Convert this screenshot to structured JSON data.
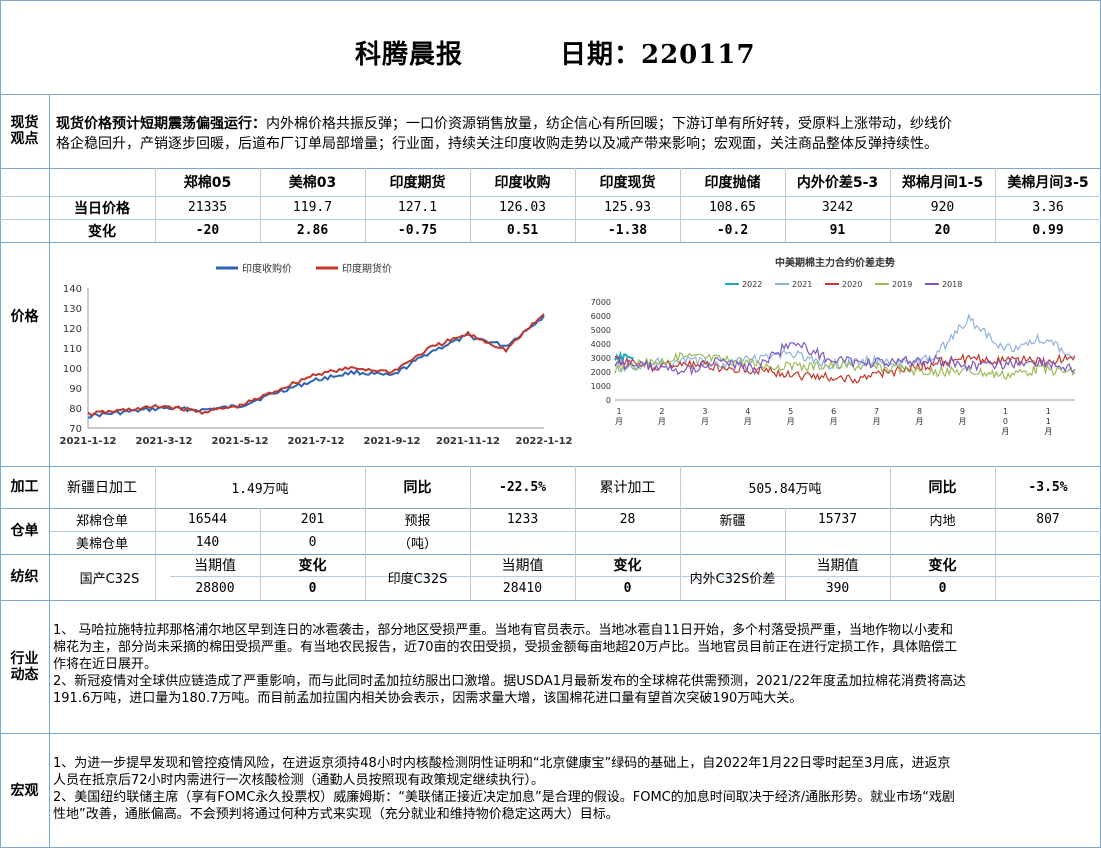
{
  "header": {
    "title": "科腾晨报",
    "date_label": "日期：220117"
  },
  "spot": {
    "label": "现货观点",
    "headline": "现货价格预计短期震荡偏强运行：",
    "text_line1": "内外棉价格共振反弹；一口价资源销售放量，纺企信心有所回暖；下游订单有所好转，受原料上涨带动，纱线价",
    "text_line2": "格企稳回升，产销逐步回暖，后道布厂订单局部增量；行业面，持续关注印度收购走势以及减产带来影响；宏观面，关注商品整体反弹持续性。"
  },
  "price": {
    "label": "价格",
    "headers": [
      "郑棉05",
      "美棉03",
      "印度期货",
      "印度收购",
      "印度现货",
      "印度抛储",
      "内外价差5-3",
      "郑棉月间1-5",
      "美棉月间3-5"
    ],
    "row_today_label": "当日价格",
    "today": [
      "21335",
      "119.7",
      "127.1",
      "126.03",
      "125.93",
      "108.65",
      "3242",
      "920",
      "3.36"
    ],
    "row_change_label": "变化",
    "change": [
      "-20",
      "2.86",
      "-0.75",
      "0.51",
      "-1.38",
      "-0.2",
      "91",
      "20",
      "0.99"
    ]
  },
  "chart_data": [
    {
      "type": "line",
      "title": "",
      "legend": [
        "印度收购价",
        "印度期货价"
      ],
      "legend_position": "top",
      "x_ticks": [
        "2021-1-12",
        "2021-3-12",
        "2021-5-12",
        "2021-7-12",
        "2021-9-12",
        "2021-11-12",
        "2022-1-12"
      ],
      "ylim": [
        70,
        140
      ],
      "y_ticks": [
        70,
        80,
        90,
        100,
        110,
        120,
        130,
        140
      ],
      "series": [
        {
          "name": "印度收购价",
          "color": "#2e63b8",
          "x": [
            "2021-1-12",
            "2021-2-12",
            "2021-3-12",
            "2021-4-12",
            "2021-5-12",
            "2021-6-12",
            "2021-7-12",
            "2021-8-12",
            "2021-9-12",
            "2021-10-12",
            "2021-11-12",
            "2021-12-12",
            "2022-1-12"
          ],
          "values": [
            76,
            78,
            80,
            79,
            81,
            88,
            94,
            98,
            96,
            108,
            116,
            111,
            126
          ]
        },
        {
          "name": "印度期货价",
          "color": "#c0392b",
          "x": [
            "2021-1-12",
            "2021-2-12",
            "2021-3-12",
            "2021-4-12",
            "2021-5-12",
            "2021-6-12",
            "2021-7-12",
            "2021-8-12",
            "2021-9-12",
            "2021-10-12",
            "2021-11-12",
            "2021-12-12",
            "2022-1-12"
          ],
          "values": [
            77,
            79,
            81,
            78,
            81,
            89,
            97,
            100,
            98,
            110,
            117,
            109,
            127
          ]
        }
      ]
    },
    {
      "type": "line",
      "title": "中美期棉主力合约价差走势",
      "legend_position": "top",
      "ylim": [
        0,
        7000
      ],
      "y_ticks": [
        0,
        1000,
        2000,
        3000,
        4000,
        5000,
        6000,
        7000
      ],
      "x_ticks": [
        "1\n月",
        "2\n月",
        "3\n月",
        "4\n月",
        "5\n月",
        "6\n月",
        "7\n月",
        "8\n月",
        "9\n月",
        "1\n0\n月",
        "1\n1\n月",
        "1\n2\n月"
      ],
      "series": [
        {
          "name": "2022",
          "color": "#1fa7c9",
          "values": [
            2700,
            3200,
            3000
          ]
        },
        {
          "name": "2021",
          "color": "#8fb3e0",
          "values": [
            2300,
            2600,
            2800,
            2500,
            2900,
            3300,
            2500,
            2800,
            2600,
            3000,
            5800,
            3600,
            4400,
            3200
          ]
        },
        {
          "name": "2020",
          "color": "#c0392b",
          "values": [
            2800,
            2400,
            2600,
            2300,
            2200,
            1800,
            1600,
            1500,
            2100,
            2600,
            3000,
            2900,
            2700,
            3100
          ]
        },
        {
          "name": "2019",
          "color": "#9bbb59",
          "values": [
            2200,
            2700,
            3100,
            2900,
            2600,
            2300,
            2500,
            2400,
            2200,
            2000,
            2100,
            1800,
            2200,
            2000
          ]
        },
        {
          "name": "2018",
          "color": "#7e57c2",
          "values": [
            2600,
            2400,
            2100,
            2800,
            2200,
            4200,
            3000,
            2600,
            2700,
            2900,
            2400,
            2600,
            2800,
            2200
          ]
        }
      ]
    }
  ],
  "processing": {
    "label": "加工",
    "xinjiang_label": "新疆日加工",
    "xinjiang_value": "1.49万吨",
    "yoy_label": "同比",
    "yoy_value": "-22.5%",
    "total_label": "累计加工",
    "total_value": "505.84万吨",
    "yoy2_label": "同比",
    "yoy2_value": "-3.5%"
  },
  "warehouse": {
    "label": "仓单",
    "zheng_label": "郑棉仓单",
    "zheng_value": "16544",
    "zheng_change": "201",
    "forecast_label": "预报",
    "unit_label": "（吨）",
    "forecast_value": "1233",
    "forecast_change": "28",
    "xinjiang_label": "新疆",
    "xinjiang_value": "15737",
    "inland_label": "内地",
    "inland_value": "807",
    "us_label": "美棉仓单",
    "us_value": "140",
    "us_change": "0"
  },
  "textile": {
    "label": "纺织",
    "domestic_label": "国产C32S",
    "current_label": "当期值",
    "change_label": "变化",
    "domestic_value": "28800",
    "domestic_change": "0",
    "india_label": "印度C32S",
    "india_value": "28410",
    "india_change": "0",
    "spread_label": "内外C32S价差",
    "spread_value": "390",
    "spread_change": "0"
  },
  "industry": {
    "label": "行业动态",
    "lines": [
      "1、 马哈拉施特拉邦那格浦尔地区早到连日的冰雹袭击，部分地区受损严重。当地有官员表示。当地冰雹自11日开始，多个村落受损严重，当地作物以小麦和",
      "棉花为主，部分尚未采摘的棉田受损严重。有当地农民报告，近70亩的农田受损，受损金额每亩地超20万卢比。当地官员目前正在进行定损工作，具体赔偿工",
      "作将在近日展开。",
      "2、新冠疫情对全球供应链造成了严重影响，而与此同时孟加拉纺服出口激增。据USDA1月最新发布的全球棉花供需预测，2021/22年度孟加拉棉花消费将高达",
      "191.6万吨，进口量为180.7万吨。而目前孟加拉国内相关协会表示，因需求量大增，该国棉花进口量有望首次突破190万吨大关。"
    ]
  },
  "macro": {
    "label": "宏观",
    "lines": [
      "1、为进一步提早发现和管控疫情风险，在进返京须持48小时内核酸检测阴性证明和“北京健康宝”绿码的基础上，自2022年1月22日零时起至3月底，进返京",
      "人员在抵京后72小时内需进行一次核酸检测（通勤人员按照现有政策规定继续执行）。",
      "2、美国纽约联储主席（享有FOMC永久投票权）威廉姆斯：“美联储正接近决定加息”是合理的假设。FOMC的加息时间取决于经济/通胀形势。就业市场“戏剧",
      "性地”改善，通胀偏高。不会预判将通过何种方式来实现（充分就业和维持物价稳定这两大）目标。"
    ]
  }
}
